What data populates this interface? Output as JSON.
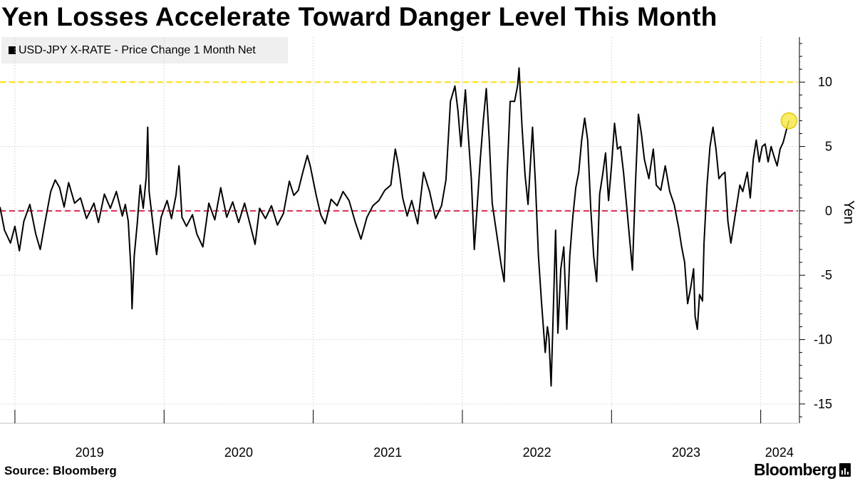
{
  "header": {
    "title": "Yen Losses Accelerate Toward Danger Level This Month"
  },
  "legend": {
    "label": "USD-JPY X-RATE - Price Change 1 Month Net",
    "swatch_color": "#000000"
  },
  "footer": {
    "source": "Source: Bloomberg",
    "brand": "Bloomberg"
  },
  "chart_data": {
    "type": "line",
    "title": "Yen Losses Accelerate Toward Danger Level This Month",
    "xlabel": "",
    "ylabel": "Yen",
    "y_axis_side": "right",
    "ylim": [
      -16.5,
      13.5
    ],
    "yticks": [
      10,
      5,
      0,
      -5,
      -10,
      -15
    ],
    "ytick_labels": [
      "10",
      "5",
      "0",
      "-5",
      "-10",
      "-15"
    ],
    "xlim": [
      2018.9,
      2024.25
    ],
    "xtick_labels": [
      "2019",
      "2020",
      "2021",
      "2022",
      "2023",
      "2024"
    ],
    "grid": "dotted",
    "reference_lines": [
      {
        "name": "danger-level",
        "y": 10,
        "color": "#ffe000",
        "style": "dashed"
      },
      {
        "name": "zero-line",
        "y": 0,
        "color": "#e0294f",
        "style": "dashed"
      }
    ],
    "highlight": {
      "x": 2024.19,
      "y": 7.0,
      "color": "#f7e84a"
    },
    "series": [
      {
        "name": "USD-JPY X-RATE - Price Change 1 Month Net",
        "color": "#000000",
        "points": [
          [
            2018.9,
            0.3
          ],
          [
            2018.93,
            -1.5
          ],
          [
            2018.97,
            -2.5
          ],
          [
            2019.0,
            -1.2
          ],
          [
            2019.03,
            -3.1
          ],
          [
            2019.06,
            -0.8
          ],
          [
            2019.1,
            0.5
          ],
          [
            2019.14,
            -1.8
          ],
          [
            2019.17,
            -3.0
          ],
          [
            2019.2,
            -1.0
          ],
          [
            2019.24,
            1.5
          ],
          [
            2019.27,
            2.4
          ],
          [
            2019.3,
            1.8
          ],
          [
            2019.33,
            0.3
          ],
          [
            2019.36,
            2.2
          ],
          [
            2019.4,
            0.6
          ],
          [
            2019.44,
            1.0
          ],
          [
            2019.48,
            -0.6
          ],
          [
            2019.53,
            0.6
          ],
          [
            2019.56,
            -0.9
          ],
          [
            2019.6,
            1.3
          ],
          [
            2019.64,
            0.2
          ],
          [
            2019.68,
            1.5
          ],
          [
            2019.72,
            -0.4
          ],
          [
            2019.74,
            0.5
          ],
          [
            2019.76,
            -0.8
          ],
          [
            2019.78,
            -5.0
          ],
          [
            2019.785,
            -7.6
          ],
          [
            2019.8,
            -3.5
          ],
          [
            2019.82,
            -1.0
          ],
          [
            2019.84,
            2.0
          ],
          [
            2019.86,
            0.2
          ],
          [
            2019.88,
            2.6
          ],
          [
            2019.89,
            6.5
          ],
          [
            2019.9,
            1.5
          ],
          [
            2019.92,
            -0.5
          ],
          [
            2019.95,
            -3.4
          ],
          [
            2019.98,
            -0.5
          ],
          [
            2020.02,
            0.8
          ],
          [
            2020.05,
            -0.6
          ],
          [
            2020.08,
            1.2
          ],
          [
            2020.1,
            3.5
          ],
          [
            2020.12,
            -0.5
          ],
          [
            2020.15,
            -1.2
          ],
          [
            2020.19,
            -0.3
          ],
          [
            2020.22,
            -1.8
          ],
          [
            2020.26,
            -2.8
          ],
          [
            2020.3,
            0.6
          ],
          [
            2020.34,
            -0.7
          ],
          [
            2020.38,
            1.8
          ],
          [
            2020.42,
            -0.5
          ],
          [
            2020.46,
            0.7
          ],
          [
            2020.5,
            -0.9
          ],
          [
            2020.54,
            0.6
          ],
          [
            2020.58,
            -1.2
          ],
          [
            2020.61,
            -2.6
          ],
          [
            2020.64,
            0.2
          ],
          [
            2020.68,
            -0.6
          ],
          [
            2020.72,
            0.4
          ],
          [
            2020.76,
            -1.1
          ],
          [
            2020.8,
            -0.2
          ],
          [
            2020.84,
            2.3
          ],
          [
            2020.87,
            1.2
          ],
          [
            2020.9,
            1.6
          ],
          [
            2020.93,
            3.0
          ],
          [
            2020.96,
            4.3
          ],
          [
            2020.98,
            3.5
          ],
          [
            2021.02,
            1.2
          ],
          [
            2021.05,
            -0.3
          ],
          [
            2021.08,
            -1.0
          ],
          [
            2021.12,
            0.9
          ],
          [
            2021.16,
            0.4
          ],
          [
            2021.2,
            1.5
          ],
          [
            2021.24,
            0.8
          ],
          [
            2021.28,
            -0.8
          ],
          [
            2021.32,
            -2.2
          ],
          [
            2021.36,
            -0.5
          ],
          [
            2021.4,
            0.4
          ],
          [
            2021.44,
            0.8
          ],
          [
            2021.48,
            1.6
          ],
          [
            2021.52,
            2.0
          ],
          [
            2021.55,
            4.8
          ],
          [
            2021.57,
            3.6
          ],
          [
            2021.6,
            1.0
          ],
          [
            2021.63,
            -0.4
          ],
          [
            2021.66,
            0.8
          ],
          [
            2021.7,
            -1.0
          ],
          [
            2021.74,
            3.0
          ],
          [
            2021.78,
            1.5
          ],
          [
            2021.82,
            -0.6
          ],
          [
            2021.86,
            0.4
          ],
          [
            2021.89,
            2.4
          ],
          [
            2021.92,
            8.5
          ],
          [
            2021.95,
            9.7
          ],
          [
            2021.97,
            7.8
          ],
          [
            2021.99,
            5.0
          ],
          [
            2022.02,
            9.4
          ],
          [
            2022.04,
            5.8
          ],
          [
            2022.06,
            2.5
          ],
          [
            2022.08,
            -3.0
          ],
          [
            2022.1,
            0.5
          ],
          [
            2022.12,
            4.0
          ],
          [
            2022.14,
            7.0
          ],
          [
            2022.16,
            9.5
          ],
          [
            2022.18,
            5.5
          ],
          [
            2022.2,
            0.6
          ],
          [
            2022.23,
            -1.8
          ],
          [
            2022.26,
            -4.2
          ],
          [
            2022.28,
            -5.5
          ],
          [
            2022.3,
            2.8
          ],
          [
            2022.32,
            8.5
          ],
          [
            2022.35,
            8.5
          ],
          [
            2022.37,
            9.7
          ],
          [
            2022.38,
            11.1
          ],
          [
            2022.4,
            6.5
          ],
          [
            2022.42,
            2.8
          ],
          [
            2022.44,
            0.5
          ],
          [
            2022.47,
            6.5
          ],
          [
            2022.49,
            2.0
          ],
          [
            2022.51,
            -3.5
          ],
          [
            2022.53,
            -7.0
          ],
          [
            2022.555,
            -11.0
          ],
          [
            2022.57,
            -9.0
          ],
          [
            2022.58,
            -9.8
          ],
          [
            2022.595,
            -13.6
          ],
          [
            2022.61,
            -7.5
          ],
          [
            2022.625,
            -1.5
          ],
          [
            2022.64,
            -9.5
          ],
          [
            2022.66,
            -4.5
          ],
          [
            2022.68,
            -2.8
          ],
          [
            2022.7,
            -9.2
          ],
          [
            2022.72,
            -3.5
          ],
          [
            2022.74,
            -0.5
          ],
          [
            2022.76,
            1.8
          ],
          [
            2022.78,
            3.0
          ],
          [
            2022.8,
            5.5
          ],
          [
            2022.82,
            7.2
          ],
          [
            2022.84,
            5.5
          ],
          [
            2022.86,
            0.3
          ],
          [
            2022.88,
            -3.5
          ],
          [
            2022.9,
            -5.5
          ],
          [
            2022.92,
            1.3
          ],
          [
            2022.94,
            2.8
          ],
          [
            2022.96,
            4.5
          ],
          [
            2022.98,
            0.8
          ],
          [
            2023.0,
            3.5
          ],
          [
            2023.02,
            6.8
          ],
          [
            2023.04,
            4.8
          ],
          [
            2023.06,
            5.0
          ],
          [
            2023.08,
            3.0
          ],
          [
            2023.1,
            0.5
          ],
          [
            2023.12,
            -2.0
          ],
          [
            2023.14,
            -4.6
          ],
          [
            2023.16,
            2.0
          ],
          [
            2023.18,
            7.5
          ],
          [
            2023.2,
            6.0
          ],
          [
            2023.22,
            4.0
          ],
          [
            2023.25,
            2.5
          ],
          [
            2023.28,
            4.8
          ],
          [
            2023.3,
            2.0
          ],
          [
            2023.33,
            1.6
          ],
          [
            2023.36,
            3.5
          ],
          [
            2023.39,
            1.5
          ],
          [
            2023.42,
            0.5
          ],
          [
            2023.45,
            -1.3
          ],
          [
            2023.47,
            -2.8
          ],
          [
            2023.49,
            -4.0
          ],
          [
            2023.51,
            -7.2
          ],
          [
            2023.53,
            -6.0
          ],
          [
            2023.55,
            -4.5
          ],
          [
            2023.56,
            -8.2
          ],
          [
            2023.575,
            -9.2
          ],
          [
            2023.59,
            -6.5
          ],
          [
            2023.61,
            -7.0
          ],
          [
            2023.62,
            -2.5
          ],
          [
            2023.64,
            2.0
          ],
          [
            2023.66,
            5.0
          ],
          [
            2023.68,
            6.5
          ],
          [
            2023.7,
            4.8
          ],
          [
            2023.72,
            2.5
          ],
          [
            2023.74,
            2.8
          ],
          [
            2023.76,
            3.0
          ],
          [
            2023.78,
            -0.8
          ],
          [
            2023.8,
            -2.5
          ],
          [
            2023.82,
            -1.0
          ],
          [
            2023.84,
            0.5
          ],
          [
            2023.86,
            2.0
          ],
          [
            2023.88,
            1.5
          ],
          [
            2023.91,
            3.0
          ],
          [
            2023.93,
            1.0
          ],
          [
            2023.95,
            4.0
          ],
          [
            2023.97,
            5.5
          ],
          [
            2023.99,
            3.8
          ],
          [
            2024.01,
            5.0
          ],
          [
            2024.03,
            5.2
          ],
          [
            2024.05,
            3.8
          ],
          [
            2024.07,
            5.0
          ],
          [
            2024.09,
            4.2
          ],
          [
            2024.11,
            3.5
          ],
          [
            2024.13,
            4.8
          ],
          [
            2024.15,
            5.3
          ],
          [
            2024.17,
            6.2
          ],
          [
            2024.19,
            7.0
          ]
        ]
      }
    ]
  }
}
